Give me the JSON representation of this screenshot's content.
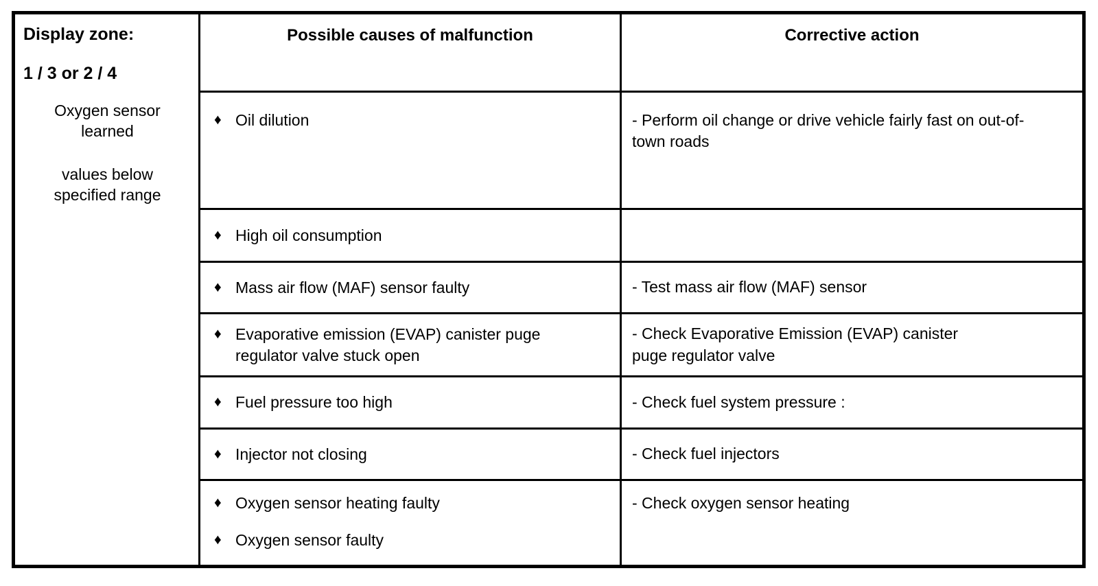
{
  "table": {
    "bullet": "♦",
    "display_zone": {
      "title": "Display zone:",
      "zone": "1 / 3 or 2 / 4",
      "description_1": "Oxygen sensor learned",
      "description_2": "values below specified range"
    },
    "headers": {
      "causes": "Possible causes of malfunction",
      "action": "Corrective action"
    },
    "rows": [
      {
        "causes": [
          "Oil dilution"
        ],
        "action": "- Perform oil change or drive vehicle fairly fast on out-of-town roads"
      },
      {
        "causes": [
          "High oil consumption"
        ],
        "action": ""
      },
      {
        "causes": [
          "Mass air flow (MAF) sensor faulty"
        ],
        "action": "- Test mass air flow (MAF) sensor"
      },
      {
        "causes": [
          "Evaporative emission (EVAP) canister puge regulator valve stuck open"
        ],
        "action": "- Check Evaporative Emission (EVAP) canister puge regulator valve"
      },
      {
        "causes": [
          "Fuel pressure too high"
        ],
        "action": "- Check fuel system pressure :"
      },
      {
        "causes": [
          "Injector not closing"
        ],
        "action": "- Check fuel injectors"
      },
      {
        "causes": [
          "Oxygen sensor heating faulty",
          "Oxygen sensor faulty"
        ],
        "action": "- Check oxygen sensor heating"
      }
    ]
  }
}
